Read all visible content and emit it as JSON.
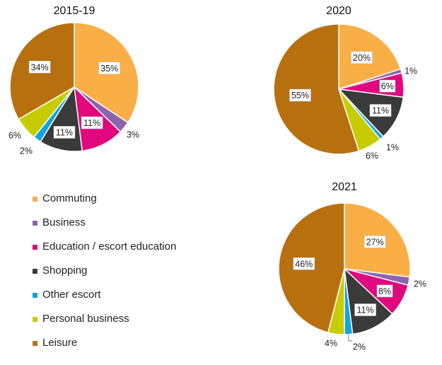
{
  "categories": [
    {
      "name": "Commuting",
      "color": "#F9AE46"
    },
    {
      "name": "Business",
      "color": "#8E63AE"
    },
    {
      "name": "Education / escort education",
      "color": "#E0077F"
    },
    {
      "name": "Shopping",
      "color": "#3A3A3A"
    },
    {
      "name": "Other escort",
      "color": "#10A5DE"
    },
    {
      "name": "Personal business",
      "color": "#C7CC00"
    },
    {
      "name": "Leisure",
      "color": "#B8700F"
    }
  ],
  "chart_data": [
    {
      "type": "pie",
      "title": "2015-19",
      "labels": [
        "Commuting",
        "Business",
        "Education / escort education",
        "Shopping",
        "Other escort",
        "Personal business",
        "Leisure"
      ],
      "values": [
        35,
        3,
        11,
        11,
        2,
        6,
        34
      ],
      "value_labels": [
        "35%",
        "3%",
        "11%",
        "11%",
        "2%",
        "6%",
        "34%"
      ],
      "legend": "left"
    },
    {
      "type": "pie",
      "title": "2020",
      "labels": [
        "Commuting",
        "Business",
        "Education / escort education",
        "Shopping",
        "Other escort",
        "Personal business",
        "Leisure"
      ],
      "values": [
        20,
        1,
        6,
        11,
        1,
        6,
        55
      ],
      "value_labels": [
        "20%",
        "1%",
        "6%",
        "11%",
        "1%",
        "6%",
        "55%"
      ],
      "legend": "left"
    },
    {
      "type": "pie",
      "title": "2021",
      "labels": [
        "Commuting",
        "Business",
        "Education / escort education",
        "Shopping",
        "Other escort",
        "Personal business",
        "Leisure"
      ],
      "values": [
        27,
        2,
        8,
        11,
        2,
        4,
        46
      ],
      "value_labels": [
        "27%",
        "2%",
        "8%",
        "11%",
        "2%",
        "4%",
        "46%"
      ],
      "legend": "left"
    }
  ]
}
